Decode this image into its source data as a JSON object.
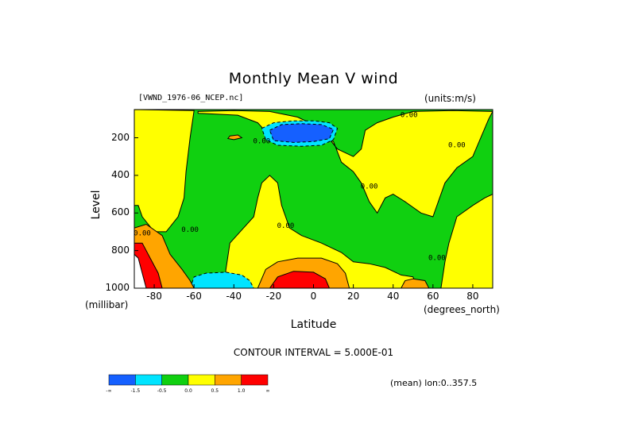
{
  "chart_data": {
    "type": "contour",
    "title": "Monthly Mean V wind",
    "dataset": "[VWND_1976-06_NCEP.nc]",
    "units": "(units:m/s)",
    "xlabel": "Latitude",
    "x_unit": "(degrees_north)",
    "ylabel": "Level",
    "y_unit": "(millibar)",
    "xlim": [
      -90,
      90
    ],
    "ylim": [
      1000,
      50
    ],
    "x_ticks": [
      {
        "label": "-80",
        "value": -80
      },
      {
        "label": "-60",
        "value": -60
      },
      {
        "label": "-40",
        "value": -40
      },
      {
        "label": "-20",
        "value": -20
      },
      {
        "label": "0",
        "value": 0
      },
      {
        "label": "20",
        "value": 20
      },
      {
        "label": "40",
        "value": 40
      },
      {
        "label": "60",
        "value": 60
      },
      {
        "label": "80",
        "value": 80
      }
    ],
    "y_ticks": [
      {
        "label": "200",
        "value": 200
      },
      {
        "label": "400",
        "value": 400
      },
      {
        "label": "600",
        "value": 600
      },
      {
        "label": "800",
        "value": 800
      },
      {
        "label": "1000",
        "value": 1000
      }
    ],
    "contour_interval": "CONTOUR INTERVAL = 5.000E-01",
    "mean_label": "(mean) lon:0..357.5",
    "contour_labels": [
      {
        "text": "0.00",
        "lat": -26,
        "lev": 230
      },
      {
        "text": "0.00",
        "lat": 28,
        "lev": 470
      },
      {
        "text": "0.00",
        "lat": 48,
        "lev": 90
      },
      {
        "text": "0.00",
        "lat": 72,
        "lev": 250
      },
      {
        "text": "0.00",
        "lat": -86,
        "lev": 720
      },
      {
        "text": "0.00",
        "lat": -62,
        "lev": 700
      },
      {
        "text": "0.00",
        "lat": -14,
        "lev": 680
      },
      {
        "text": "0.00",
        "lat": 62,
        "lev": 850
      }
    ],
    "colorbar": {
      "colors": [
        "#1560ff",
        "#00e4ff",
        "#10d010",
        "#ffff00",
        "#ffa500",
        "#ff0000"
      ],
      "labels": [
        "-∞",
        "-1.5",
        "-0.5",
        "0.0",
        "0.5",
        "1.0",
        "∞"
      ]
    },
    "regions": [
      {
        "name": "green-background",
        "color": "#10d010",
        "polygon": [
          [
            -90,
            50
          ],
          [
            90,
            50
          ],
          [
            90,
            1000
          ],
          [
            -90,
            1000
          ]
        ]
      },
      {
        "name": "yellow-south-pole",
        "color": "#ffff00",
        "polygon": [
          [
            -90,
            50
          ],
          [
            -60,
            55
          ],
          [
            -62,
            200
          ],
          [
            -64,
            380
          ],
          [
            -65,
            520
          ],
          [
            -68,
            620
          ],
          [
            -74,
            700
          ],
          [
            -80,
            700
          ],
          [
            -86,
            620
          ],
          [
            -88,
            560
          ],
          [
            -90,
            560
          ]
        ]
      },
      {
        "name": "yellow-midlatitude",
        "color": "#ffff00",
        "polygon": [
          [
            -58,
            70
          ],
          [
            -38,
            80
          ],
          [
            -28,
            120
          ],
          [
            -22,
            190
          ],
          [
            -10,
            190
          ],
          [
            2,
            190
          ],
          [
            10,
            220
          ],
          [
            14,
            330
          ],
          [
            20,
            380
          ],
          [
            24,
            440
          ],
          [
            28,
            540
          ],
          [
            32,
            600
          ],
          [
            36,
            520
          ],
          [
            40,
            500
          ],
          [
            46,
            540
          ],
          [
            54,
            600
          ],
          [
            60,
            620
          ],
          [
            66,
            440
          ],
          [
            72,
            360
          ],
          [
            80,
            300
          ],
          [
            88,
            100
          ],
          [
            90,
            60
          ],
          [
            70,
            55
          ],
          [
            50,
            60
          ],
          [
            40,
            90
          ],
          [
            32,
            120
          ],
          [
            26,
            160
          ],
          [
            24,
            260
          ],
          [
            20,
            300
          ],
          [
            12,
            260
          ],
          [
            6,
            180
          ],
          [
            0,
            130
          ],
          [
            -8,
            90
          ],
          [
            -22,
            60
          ],
          [
            -40,
            55
          ],
          [
            -58,
            60
          ]
        ]
      },
      {
        "name": "yellow-southern-band",
        "color": "#ffff00",
        "polygon": [
          [
            -45,
            1000
          ],
          [
            -44,
            900
          ],
          [
            -42,
            760
          ],
          [
            -36,
            690
          ],
          [
            -30,
            620
          ],
          [
            -28,
            520
          ],
          [
            -26,
            440
          ],
          [
            -22,
            400
          ],
          [
            -18,
            440
          ],
          [
            -16,
            560
          ],
          [
            -12,
            680
          ],
          [
            -6,
            720
          ],
          [
            4,
            760
          ],
          [
            14,
            810
          ],
          [
            20,
            860
          ],
          [
            28,
            870
          ],
          [
            36,
            890
          ],
          [
            44,
            930
          ],
          [
            50,
            940
          ],
          [
            52,
            1000
          ]
        ]
      },
      {
        "name": "yellow-northern-strip",
        "color": "#ffff00",
        "polygon": [
          [
            64,
            1000
          ],
          [
            66,
            860
          ],
          [
            68,
            760
          ],
          [
            72,
            620
          ],
          [
            80,
            560
          ],
          [
            86,
            520
          ],
          [
            90,
            500
          ],
          [
            90,
            1000
          ]
        ]
      },
      {
        "name": "blue-jet-outer",
        "color": "#00e4ff",
        "polygon": [
          [
            -26,
            150
          ],
          [
            -20,
            120
          ],
          [
            -10,
            110
          ],
          [
            0,
            110
          ],
          [
            8,
            120
          ],
          [
            12,
            150
          ],
          [
            10,
            210
          ],
          [
            4,
            240
          ],
          [
            -6,
            245
          ],
          [
            -18,
            240
          ],
          [
            -24,
            210
          ]
        ]
      },
      {
        "name": "blue-jet-core",
        "color": "#1560ff",
        "polygon": [
          [
            -22,
            160
          ],
          [
            -16,
            130
          ],
          [
            -6,
            125
          ],
          [
            4,
            130
          ],
          [
            10,
            155
          ],
          [
            8,
            205
          ],
          [
            0,
            220
          ],
          [
            -10,
            225
          ],
          [
            -20,
            215
          ]
        ]
      },
      {
        "name": "blue-southern-surface",
        "color": "#00e4ff",
        "polygon": [
          [
            -62,
            1000
          ],
          [
            -60,
            940
          ],
          [
            -54,
            920
          ],
          [
            -44,
            915
          ],
          [
            -36,
            930
          ],
          [
            -32,
            960
          ],
          [
            -30,
            1000
          ]
        ]
      },
      {
        "name": "orange-equator",
        "color": "#ffa500",
        "polygon": [
          [
            -28,
            1000
          ],
          [
            -24,
            900
          ],
          [
            -18,
            860
          ],
          [
            -8,
            840
          ],
          [
            4,
            840
          ],
          [
            12,
            870
          ],
          [
            16,
            920
          ],
          [
            18,
            1000
          ]
        ]
      },
      {
        "name": "red-equator",
        "color": "#ff0000",
        "polygon": [
          [
            -22,
            1000
          ],
          [
            -18,
            940
          ],
          [
            -10,
            910
          ],
          [
            0,
            915
          ],
          [
            6,
            950
          ],
          [
            8,
            1000
          ]
        ]
      },
      {
        "name": "orange-south-edge",
        "color": "#ffa500",
        "polygon": [
          [
            -90,
            680
          ],
          [
            -84,
            660
          ],
          [
            -76,
            720
          ],
          [
            -72,
            820
          ],
          [
            -66,
            900
          ],
          [
            -62,
            960
          ],
          [
            -60,
            1000
          ],
          [
            -90,
            1000
          ]
        ]
      },
      {
        "name": "red-south-edge",
        "color": "#ff0000",
        "polygon": [
          [
            -90,
            760
          ],
          [
            -86,
            760
          ],
          [
            -82,
            840
          ],
          [
            -78,
            920
          ],
          [
            -76,
            1000
          ],
          [
            -90,
            1000
          ]
        ]
      },
      {
        "name": "orange-northern-surface",
        "color": "#ffa500",
        "polygon": [
          [
            44,
            1000
          ],
          [
            46,
            960
          ],
          [
            50,
            950
          ],
          [
            56,
            960
          ],
          [
            58,
            1000
          ]
        ]
      },
      {
        "name": "orange-small-blob",
        "color": "#ffa500",
        "polygon": [
          [
            -42,
            190
          ],
          [
            -38,
            185
          ],
          [
            -36,
            200
          ],
          [
            -40,
            210
          ],
          [
            -43,
            204
          ]
        ]
      },
      {
        "name": "white-missing",
        "color": "#ffffff",
        "polygon": [
          [
            -90,
            820
          ],
          [
            -88,
            840
          ],
          [
            -86,
            920
          ],
          [
            -84,
            1000
          ],
          [
            -90,
            1000
          ]
        ]
      }
    ]
  }
}
